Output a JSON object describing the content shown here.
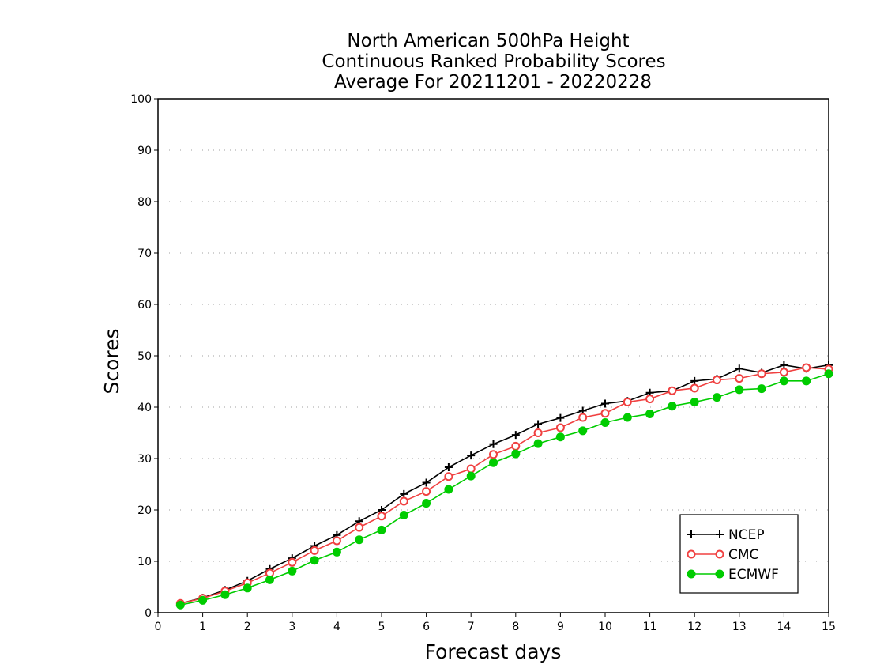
{
  "chart_data": {
    "type": "line",
    "title": [
      "North American 500hPa Height",
      "Continuous Ranked Probability Scores",
      "Average For 20211201 - 20220228"
    ],
    "xlabel": "Forecast days",
    "ylabel": "Scores",
    "xlim": [
      0,
      15
    ],
    "ylim": [
      0,
      100
    ],
    "xticks": [
      0,
      1,
      2,
      3,
      4,
      5,
      6,
      7,
      8,
      9,
      10,
      11,
      12,
      13,
      14,
      15
    ],
    "yticks": [
      0,
      10,
      20,
      30,
      40,
      50,
      60,
      70,
      80,
      90,
      100
    ],
    "grid": true,
    "legend_position": "bottom-right",
    "x": [
      0.5,
      1,
      1.5,
      2,
      2.5,
      3,
      3.5,
      4,
      4.5,
      5,
      5.5,
      6,
      6.5,
      7,
      7.5,
      8,
      8.5,
      9,
      9.5,
      10,
      10.5,
      11,
      11.5,
      12,
      12.5,
      13,
      13.5,
      14,
      14.5,
      15
    ],
    "series": [
      {
        "name": "NCEP",
        "color": "#000000",
        "marker": "plus",
        "values": [
          1.8,
          2.9,
          4.4,
          6.2,
          8.5,
          10.6,
          13.0,
          15.1,
          17.8,
          20.0,
          23.1,
          25.3,
          28.3,
          30.6,
          32.8,
          34.6,
          36.7,
          37.9,
          39.3,
          40.7,
          41.2,
          42.8,
          43.2,
          45.1,
          45.5,
          47.5,
          46.7,
          48.2,
          47.5,
          48.2
        ]
      },
      {
        "name": "CMC",
        "color": "#f04040",
        "marker": "open-circle",
        "values": [
          1.8,
          2.8,
          4.2,
          5.8,
          7.7,
          9.8,
          12.1,
          14.0,
          16.6,
          18.8,
          21.7,
          23.6,
          26.5,
          28.0,
          30.8,
          32.4,
          35.0,
          36.0,
          38.0,
          38.8,
          41.0,
          41.6,
          43.2,
          43.7,
          45.3,
          45.6,
          46.5,
          46.8,
          47.7,
          47.4
        ]
      },
      {
        "name": "ECMWF",
        "color": "#00cc00",
        "marker": "filled-circle",
        "values": [
          1.5,
          2.4,
          3.5,
          4.8,
          6.4,
          8.1,
          10.2,
          11.8,
          14.2,
          16.1,
          19.0,
          21.3,
          24.0,
          26.6,
          29.2,
          30.9,
          32.9,
          34.2,
          35.4,
          37.0,
          38.0,
          38.7,
          40.2,
          41.0,
          41.9,
          43.4,
          43.6,
          45.1,
          45.1,
          46.5
        ]
      }
    ]
  }
}
